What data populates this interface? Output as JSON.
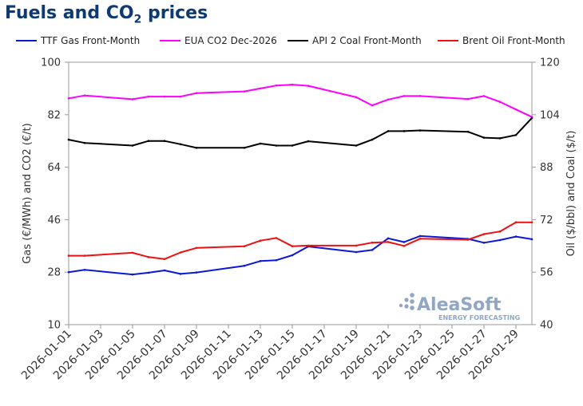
{
  "title": {
    "main": "Fuels and CO",
    "sub": "2",
    "suffix": " prices"
  },
  "watermark": {
    "brand": "AleaSoft",
    "tagline": "ENERGY FORECASTING"
  },
  "colors": {
    "title": "#0d3a73",
    "ttf": "#0b18d6",
    "eua": "#ff00ff",
    "coal": "#000000",
    "brent": "#ee1111",
    "watermark": "#8fa6c6"
  },
  "chart_data": {
    "type": "line",
    "xlabel": "",
    "ylabel_left": "Gas (€/MWh) and CO2 (€/t)",
    "ylabel_right": "Oil ($/bbl) and Coal ($/t)",
    "ylim_left": [
      10,
      100
    ],
    "yticks_left": [
      10,
      28,
      46,
      64,
      82,
      100
    ],
    "ylim_right": [
      40,
      120
    ],
    "yticks_right": [
      40,
      56,
      72,
      88,
      104,
      120
    ],
    "grid": false,
    "legend_position": "top",
    "x": [
      "2026-01-01",
      "2026-01-02",
      "2026-01-05",
      "2026-01-06",
      "2026-01-07",
      "2026-01-08",
      "2026-01-09",
      "2026-01-12",
      "2026-01-13",
      "2026-01-14",
      "2026-01-15",
      "2026-01-16",
      "2026-01-19",
      "2026-01-20",
      "2026-01-21",
      "2026-01-22",
      "2026-01-23",
      "2026-01-26",
      "2026-01-27",
      "2026-01-28",
      "2026-01-29",
      "2026-01-30"
    ],
    "x_ticks": [
      "2026-01-01",
      "2026-01-03",
      "2026-01-05",
      "2026-01-07",
      "2026-01-09",
      "2026-01-11",
      "2026-01-13",
      "2026-01-15",
      "2026-01-17",
      "2026-01-19",
      "2026-01-21",
      "2026-01-23",
      "2026-01-25",
      "2026-01-27",
      "2026-01-29"
    ],
    "series": [
      {
        "name": "TTF Gas Front-Month",
        "axis": "left",
        "color": "#0b18d6",
        "values": [
          28.0,
          28.8,
          27.2,
          27.8,
          28.6,
          27.4,
          27.9,
          30.2,
          31.8,
          32.1,
          33.8,
          36.8,
          34.9,
          35.6,
          39.6,
          38.3,
          40.4,
          39.4,
          38.1,
          39.0,
          40.2,
          39.3
        ]
      },
      {
        "name": "EUA CO2 Dec-2026",
        "axis": "left",
        "color": "#ff00ff",
        "values": [
          87.6,
          88.6,
          87.3,
          88.2,
          88.2,
          88.2,
          89.4,
          90.0,
          91.0,
          92.0,
          92.3,
          91.9,
          88.0,
          85.2,
          87.2,
          88.4,
          88.4,
          87.4,
          88.4,
          86.4,
          83.8,
          81.2
        ]
      },
      {
        "name": "API 2 Coal Front-Month",
        "axis": "right",
        "color": "#000000",
        "values": [
          96.4,
          95.4,
          94.6,
          96.0,
          96.0,
          95.0,
          93.9,
          93.9,
          95.2,
          94.6,
          94.6,
          95.9,
          94.6,
          96.4,
          99.0,
          99.0,
          99.2,
          98.8,
          97.0,
          96.8,
          97.8,
          103.0
        ]
      },
      {
        "name": "Brent Oil Front-Month",
        "axis": "right",
        "color": "#ee1111",
        "values": [
          61.0,
          61.0,
          61.9,
          60.6,
          60.0,
          62.0,
          63.4,
          63.9,
          65.6,
          66.4,
          63.9,
          64.1,
          64.1,
          65.0,
          65.2,
          64.0,
          66.2,
          65.9,
          67.6,
          68.4,
          71.2,
          71.2
        ]
      }
    ]
  }
}
